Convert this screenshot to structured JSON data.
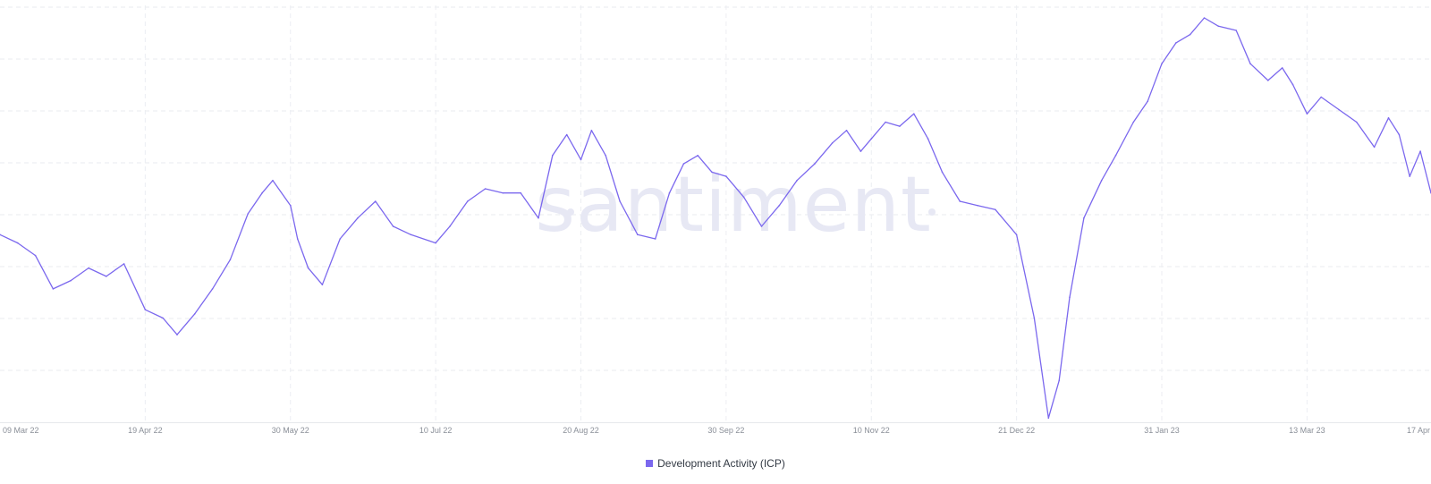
{
  "chart_data": {
    "type": "line",
    "title": "",
    "watermark": "santiment",
    "xlabel": "",
    "ylabel": "",
    "y_axis_labels_shown": false,
    "grid": true,
    "legend_position": "bottom-center",
    "x_tick_labels": [
      "09 Mar 22",
      "19 Apr 22",
      "30 May 22",
      "10 Jul 22",
      "20 Aug 22",
      "30 Sep 22",
      "10 Nov 22",
      "21 Dec 22",
      "31 Jan 23",
      "13 Mar 23",
      "17 Apr"
    ],
    "xlim": [
      "2022-03-09",
      "2023-04-17"
    ],
    "ylim": [
      0,
      100
    ],
    "series": [
      {
        "name": "Development Activity (ICP)",
        "color": "#7b68ee",
        "x": [
          "2022-03-09",
          "2022-03-14",
          "2022-03-19",
          "2022-03-24",
          "2022-03-29",
          "2022-04-03",
          "2022-04-08",
          "2022-04-13",
          "2022-04-19",
          "2022-04-24",
          "2022-04-28",
          "2022-05-03",
          "2022-05-08",
          "2022-05-13",
          "2022-05-18",
          "2022-05-22",
          "2022-05-25",
          "2022-05-30",
          "2022-06-01",
          "2022-06-04",
          "2022-06-08",
          "2022-06-13",
          "2022-06-18",
          "2022-06-23",
          "2022-06-28",
          "2022-07-03",
          "2022-07-10",
          "2022-07-14",
          "2022-07-19",
          "2022-07-24",
          "2022-07-29",
          "2022-08-03",
          "2022-08-08",
          "2022-08-12",
          "2022-08-16",
          "2022-08-20",
          "2022-08-23",
          "2022-08-27",
          "2022-08-31",
          "2022-09-05",
          "2022-09-10",
          "2022-09-14",
          "2022-09-18",
          "2022-09-22",
          "2022-09-26",
          "2022-09-30",
          "2022-10-05",
          "2022-10-10",
          "2022-10-15",
          "2022-10-20",
          "2022-10-25",
          "2022-10-30",
          "2022-11-03",
          "2022-11-07",
          "2022-11-10",
          "2022-11-14",
          "2022-11-18",
          "2022-11-22",
          "2022-11-26",
          "2022-11-30",
          "2022-12-05",
          "2022-12-10",
          "2022-12-15",
          "2022-12-21",
          "2022-12-26",
          "2022-12-30",
          "2023-01-02",
          "2023-01-05",
          "2023-01-09",
          "2023-01-14",
          "2023-01-18",
          "2023-01-23",
          "2023-01-27",
          "2023-01-31",
          "2023-02-04",
          "2023-02-08",
          "2023-02-12",
          "2023-02-16",
          "2023-02-21",
          "2023-02-25",
          "2023-03-02",
          "2023-03-06",
          "2023-03-09",
          "2023-03-13",
          "2023-03-17",
          "2023-03-22",
          "2023-03-27",
          "2023-04-01",
          "2023-04-05",
          "2023-04-08",
          "2023-04-11",
          "2023-04-14",
          "2023-04-17"
        ],
        "values": [
          45,
          43,
          40,
          32,
          34,
          37,
          35,
          38,
          27,
          25,
          21,
          26,
          32,
          39,
          50,
          55,
          58,
          52,
          44,
          37,
          33,
          44,
          49,
          53,
          47,
          45,
          43,
          47,
          53,
          56,
          55,
          55,
          49,
          64,
          69,
          63,
          70,
          64,
          53,
          45,
          44,
          55,
          62,
          64,
          60,
          59,
          54,
          47,
          52,
          58,
          62,
          67,
          70,
          65,
          68,
          72,
          71,
          74,
          68,
          60,
          53,
          52,
          51,
          45,
          25,
          1,
          10,
          30,
          49,
          58,
          64,
          72,
          77,
          86,
          91,
          93,
          97,
          95,
          94,
          86,
          82,
          85,
          81,
          74,
          78,
          75,
          72,
          66,
          73,
          69,
          59,
          65,
          55
        ]
      }
    ]
  }
}
